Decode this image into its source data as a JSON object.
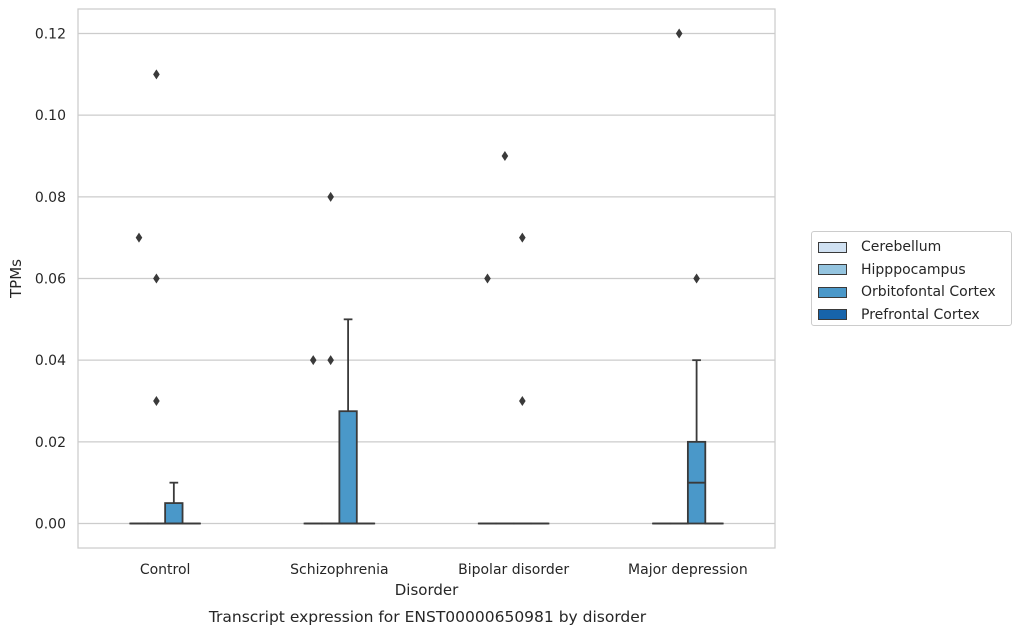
{
  "chart_data": {
    "type": "box",
    "title": "",
    "caption": "Transcript expression for ENST00000650981 by disorder",
    "xlabel": "Disorder",
    "ylabel": "TPMs",
    "categories": [
      "Control",
      "Schizophrenia",
      "Bipolar disorder",
      "Major depression"
    ],
    "ylim": [
      -0.006,
      0.126
    ],
    "yticks": [
      0.0,
      0.02,
      0.04,
      0.06,
      0.08,
      0.1,
      0.12
    ],
    "ytick_labels": [
      "0.00",
      "0.02",
      "0.04",
      "0.06",
      "0.08",
      "0.10",
      "0.12"
    ],
    "grid": "horizontal",
    "legend_position": "right",
    "series": [
      {
        "name": "Cerebellum",
        "color": "#d0e1f2",
        "boxes": [
          {
            "category": "Control",
            "q1": 0,
            "median": 0,
            "q3": 0,
            "whislo": 0,
            "whishi": 0,
            "fliers": [
              0.07
            ]
          },
          {
            "category": "Schizophrenia",
            "q1": 0,
            "median": 0,
            "q3": 0,
            "whislo": 0,
            "whishi": 0,
            "fliers": [
              0.04
            ]
          },
          {
            "category": "Bipolar disorder",
            "q1": 0,
            "median": 0,
            "q3": 0,
            "whislo": 0,
            "whishi": 0,
            "fliers": [
              0.06
            ]
          },
          {
            "category": "Major depression",
            "q1": 0,
            "median": 0,
            "q3": 0,
            "whislo": 0,
            "whishi": 0,
            "fliers": []
          }
        ]
      },
      {
        "name": "Hipppocampus",
        "color": "#94c4df",
        "boxes": [
          {
            "category": "Control",
            "q1": 0,
            "median": 0,
            "q3": 0,
            "whislo": 0,
            "whishi": 0,
            "fliers": [
              0.11,
              0.06,
              0.03
            ]
          },
          {
            "category": "Schizophrenia",
            "q1": 0,
            "median": 0,
            "q3": 0,
            "whislo": 0,
            "whishi": 0,
            "fliers": [
              0.08,
              0.04
            ]
          },
          {
            "category": "Bipolar disorder",
            "q1": 0,
            "median": 0,
            "q3": 0,
            "whislo": 0,
            "whishi": 0,
            "fliers": [
              0.09
            ]
          },
          {
            "category": "Major depression",
            "q1": 0,
            "median": 0,
            "q3": 0,
            "whislo": 0,
            "whishi": 0,
            "fliers": [
              0.12
            ]
          }
        ]
      },
      {
        "name": "Orbitofontal Cortex",
        "color": "#4a98c9",
        "boxes": [
          {
            "category": "Control",
            "q1": 0,
            "median": 0,
            "q3": 0.005,
            "whislo": 0,
            "whishi": 0.01,
            "fliers": []
          },
          {
            "category": "Schizophrenia",
            "q1": 0,
            "median": 0,
            "q3": 0.0275,
            "whislo": 0,
            "whishi": 0.05,
            "fliers": []
          },
          {
            "category": "Bipolar disorder",
            "q1": 0,
            "median": 0,
            "q3": 0,
            "whislo": 0,
            "whishi": 0,
            "fliers": [
              0.07,
              0.03
            ]
          },
          {
            "category": "Major depression",
            "q1": 0,
            "median": 0.01,
            "q3": 0.02,
            "whislo": 0,
            "whishi": 0.04,
            "fliers": [
              0.06
            ]
          }
        ]
      },
      {
        "name": "Prefrontal Cortex",
        "color": "#1764ab",
        "boxes": [
          {
            "category": "Control",
            "q1": 0,
            "median": 0,
            "q3": 0,
            "whislo": 0,
            "whishi": 0,
            "fliers": []
          },
          {
            "category": "Schizophrenia",
            "q1": 0,
            "median": 0,
            "q3": 0,
            "whislo": 0,
            "whishi": 0,
            "fliers": []
          },
          {
            "category": "Bipolar disorder",
            "q1": 0,
            "median": 0,
            "q3": 0,
            "whislo": 0,
            "whishi": 0,
            "fliers": []
          },
          {
            "category": "Major depression",
            "q1": 0,
            "median": 0,
            "q3": 0,
            "whislo": 0,
            "whishi": 0,
            "fliers": []
          }
        ]
      }
    ],
    "colors": {
      "box_edge": "#3a3a3a",
      "grid": "#cccccc",
      "axes_edge": "#cccccc",
      "flier": "#3a3a3a"
    }
  }
}
